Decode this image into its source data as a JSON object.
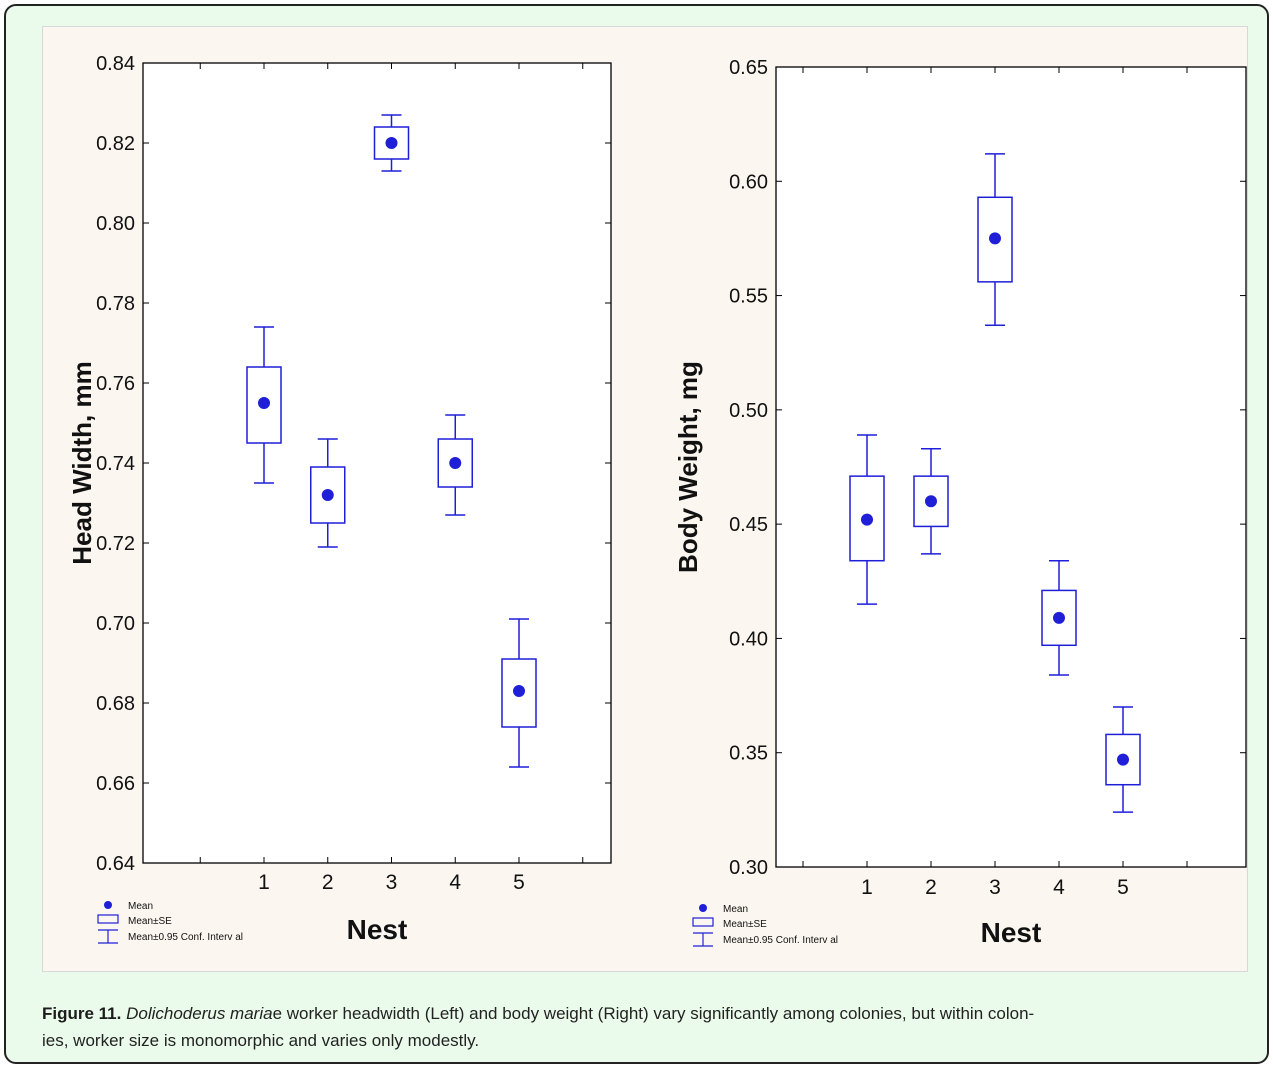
{
  "caption": {
    "label": "Figure 11.",
    "species_prefix": "Dolichoderus maria",
    "species_suffix": "e",
    "rest_line1": " worker headwidth (Left) and body weight (Right) vary significantly among colonies, but within colon-",
    "rest_line2": "ies, worker size is monomorphic and varies only modestly."
  },
  "colors": {
    "series": "#1f1fd8",
    "axis": "#000000",
    "panel_bg": "#ffffff"
  },
  "chart_data": [
    {
      "type": "box",
      "xlabel": "Nest",
      "ylabel": "Head Width, mm",
      "categories": [
        "1",
        "2",
        "3",
        "4",
        "5"
      ],
      "ylim": [
        0.64,
        0.84
      ],
      "yticks": [
        0.64,
        0.66,
        0.68,
        0.7,
        0.72,
        0.74,
        0.76,
        0.78,
        0.8,
        0.82,
        0.84
      ],
      "ytick_labels": [
        "0.64",
        "0.66",
        "0.68",
        "0.70",
        "0.72",
        "0.74",
        "0.76",
        "0.78",
        "0.80",
        "0.82",
        "0.84"
      ],
      "mean": [
        0.755,
        0.732,
        0.82,
        0.74,
        0.683
      ],
      "se_low": [
        0.745,
        0.725,
        0.816,
        0.734,
        0.674
      ],
      "se_high": [
        0.764,
        0.739,
        0.824,
        0.746,
        0.691
      ],
      "ci_low": [
        0.735,
        0.719,
        0.813,
        0.727,
        0.664
      ],
      "ci_high": [
        0.774,
        0.746,
        0.827,
        0.752,
        0.701
      ],
      "legend": [
        "Mean",
        "Mean±SE",
        "Mean±0.95 Conf. Interv al"
      ],
      "legend_position": "bottom-left",
      "grid": false
    },
    {
      "type": "box",
      "xlabel": "Nest",
      "ylabel": "Body Weight, mg",
      "categories": [
        "1",
        "2",
        "3",
        "4",
        "5"
      ],
      "ylim": [
        0.3,
        0.65
      ],
      "yticks": [
        0.3,
        0.35,
        0.4,
        0.45,
        0.5,
        0.55,
        0.6,
        0.65
      ],
      "ytick_labels": [
        "0.30",
        "0.35",
        "0.40",
        "0.45",
        "0.50",
        "0.55",
        "0.60",
        "0.65"
      ],
      "mean": [
        0.452,
        0.46,
        0.575,
        0.409,
        0.347
      ],
      "se_low": [
        0.434,
        0.449,
        0.556,
        0.397,
        0.336
      ],
      "se_high": [
        0.471,
        0.471,
        0.593,
        0.421,
        0.358
      ],
      "ci_low": [
        0.415,
        0.437,
        0.537,
        0.384,
        0.324
      ],
      "ci_high": [
        0.489,
        0.483,
        0.612,
        0.434,
        0.37
      ],
      "legend": [
        "Mean",
        "Mean±SE",
        "Mean±0.95 Conf. Interv al"
      ],
      "legend_position": "bottom-left",
      "grid": false
    }
  ]
}
